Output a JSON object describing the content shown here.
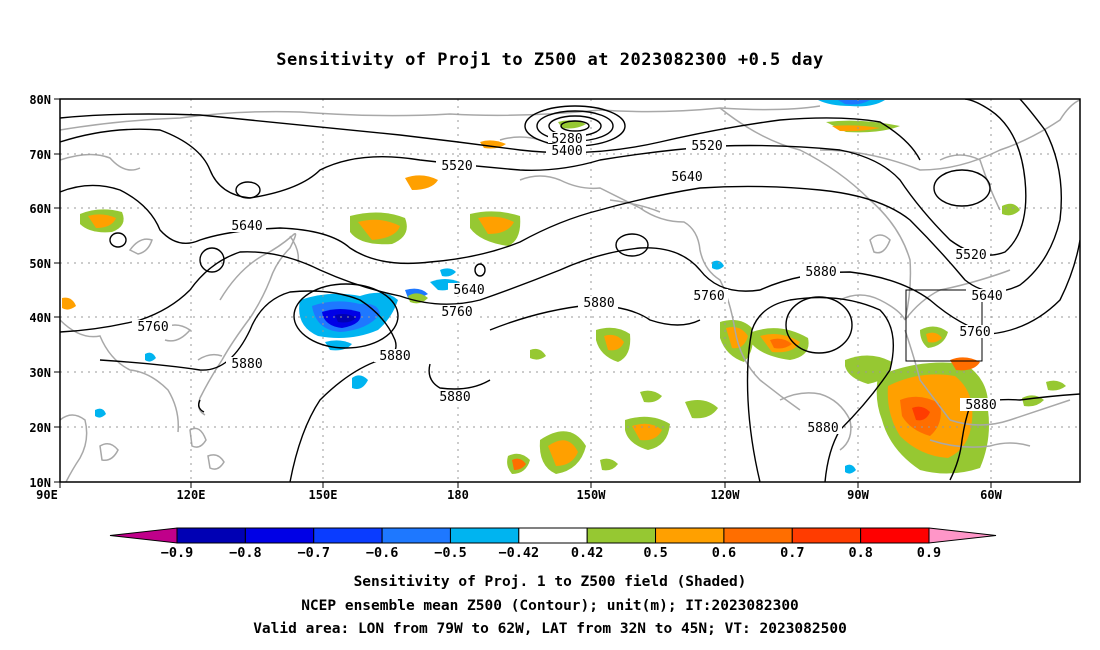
{
  "title": "Sensitivity of Proj1 to Z500 at 2023082300 +0.5 day",
  "axes": {
    "lat_labels": [
      "80N",
      "70N",
      "60N",
      "50N",
      "40N",
      "30N",
      "20N",
      "10N"
    ],
    "lon_labels": [
      "90E",
      "120E",
      "150E",
      "180",
      "150W",
      "120W",
      "90W",
      "60W"
    ]
  },
  "contour_labels": {
    "c5280": "5280",
    "c5400": "5400",
    "c5520a": "5520",
    "c5520b": "5520",
    "c5520c": "5520",
    "c5640a": "5640",
    "c5640b": "5640",
    "c5640c": "5640",
    "c5640d": "5640",
    "c5760a": "5760",
    "c5760b": "5760",
    "c5760c": "5760",
    "c5760d": "5760",
    "c5880a": "5880",
    "c5880b": "5880",
    "c5880c": "5880",
    "c5880d": "5880",
    "c5880e": "5880",
    "c5880f": "5880",
    "c5880g": "5880"
  },
  "colorbar": {
    "labels": [
      "-0.9",
      "-0.8",
      "-0.7",
      "-0.6",
      "-0.5",
      "-0.42",
      "0.42",
      "0.5",
      "0.6",
      "0.7",
      "0.8",
      "0.9"
    ],
    "colors": [
      "#c0008a",
      "#0000b4",
      "#0000e6",
      "#0a3cff",
      "#1e78ff",
      "#00b4f0",
      "#ffffff",
      "#96c832",
      "#ffa000",
      "#ff6e00",
      "#ff3c00",
      "#ff0000",
      "#ff96c8"
    ]
  },
  "valid_box": {
    "lon_range": [
      -79,
      -62
    ],
    "lat_range": [
      32,
      45
    ]
  },
  "captions": {
    "line1": "Sensitivity of Proj. 1 to Z500 field (Shaded)",
    "line2": "NCEP ensemble mean Z500 (Contour); unit(m); IT:2023082300",
    "line3": "Valid area: LON from 79W to 62W, LAT from 32N to 45N; VT: 2023082500"
  }
}
